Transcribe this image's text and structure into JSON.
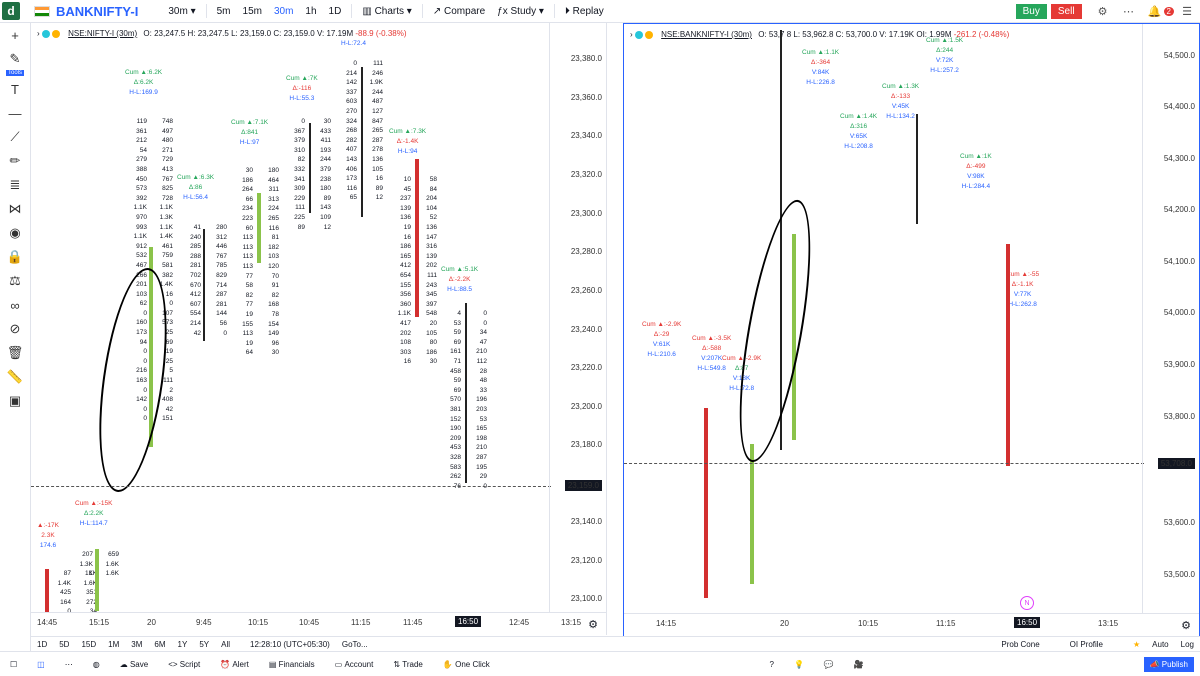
{
  "topbar": {
    "logo": "d",
    "symbol": "BANKNIFTY-I",
    "interval_dropdown": "30m",
    "intervals": [
      "5m",
      "15m",
      "30m",
      "1h",
      "1D"
    ],
    "charts": "Charts",
    "compare": "Compare",
    "study": "Study",
    "replay": "Replay",
    "buy": "Buy",
    "sell": "Sell",
    "notif_count": "2"
  },
  "left_toolbar": {
    "tools_label": "Tools"
  },
  "pane1": {
    "legend": {
      "name": "NSE:NIFTY-I (30m)",
      "o": "O: 23,247.5",
      "h": "H: 23,247.5",
      "l": "L: 23,159.0",
      "c": "C: 23,159.0",
      "v": "V: 17.19M",
      "oi": "OI: 17.19M",
      "chg": "-88.9 (-0.38%)"
    },
    "price_axis": [
      "23,380.0",
      "23,360.0",
      "23,340.0",
      "23,320.0",
      "23,300.0",
      "23,280.0",
      "23,260.0",
      "23,240.0",
      "23,220.0",
      "23,200.0",
      "23,180.0",
      "23,159.0",
      "23,140.0",
      "23,120.0",
      "23,100.0"
    ],
    "current_price": "23,159.0",
    "time_axis": [
      "14:45",
      "15:15",
      "20",
      "9:45",
      "10:15",
      "10:45",
      "11:15",
      "11:45",
      "16:50",
      "12:45",
      "13:15"
    ],
    "stats": [
      {
        "cum": "Cum ▲:6.2K",
        "delta": "Δ:6.2K",
        "hl": "H-L:169.9"
      },
      {
        "cum": "Cum ▲:7.1K",
        "delta": "Δ:841",
        "hl": "H-L:97"
      },
      {
        "cum": "Cum ▲:6.3K",
        "delta": "Δ:86",
        "hl": "H-L:56.4"
      },
      {
        "cum": "Cum ▲:7K",
        "delta": "Δ:-116",
        "hl": "H-L:55.3"
      },
      {
        "cum": "Cum ▲:7.3K",
        "delta": "Δ:-1.4K",
        "hl": "H-L:94"
      },
      {
        "cum": "Cum ▲:5.1K",
        "delta": "Δ:-2.2K",
        "hl": "H-L:88.5"
      },
      {
        "cum": "Cum ▲:-15K",
        "delta": "Δ:2.2K",
        "hl": "H-L:114.7"
      },
      {
        "cum": "▲:-17K",
        "delta": "2.3K",
        "hl": "174.6"
      }
    ],
    "top_hl": "H-L:72.4"
  },
  "pane2": {
    "legend": {
      "name": "NSE:BANKNIFTY-I (30m)",
      "o": "O: 53,7",
      "h": "8",
      "l": "L: 53,962.8",
      "c": "C: 53,700.0",
      "v2": "53,708.0",
      "v": "V: 17.19K",
      "oi": "OI: 1.99M",
      "chg": "-261.2 (-0.48%)"
    },
    "price_axis": [
      "54,500.0",
      "54,400.0",
      "54,300.0",
      "54,200.0",
      "54,100.0",
      "54,000.0",
      "53,900.0",
      "53,800.0",
      "53,708.0",
      "53,600.0",
      "53,500.0"
    ],
    "current_price": "53,708.0",
    "time_axis": [
      "14:15",
      "20",
      "10:15",
      "11:15",
      "16:50",
      "13:15"
    ],
    "stats": [
      {
        "cum": "Cum ▲:1.1K",
        "delta": "Δ:-364",
        "hl": "V:84K",
        "hl2": "H-L:226.8"
      },
      {
        "cum": "Cum ▲:1.4K",
        "delta": "Δ:316",
        "hl": "V:65K",
        "hl2": "H-L:208.8"
      },
      {
        "cum": "Cum ▲:1.3K",
        "delta": "Δ:-133",
        "hl": "V:45K",
        "hl2": "H-L:134.2"
      },
      {
        "cum": "Cum ▲:1.5K",
        "delta": "Δ:244",
        "hl": "V:72K",
        "hl2": "H-L:257.2"
      },
      {
        "cum": "Cum ▲:1K",
        "delta": "Δ:-499",
        "hl": "V:98K",
        "hl2": "H-L:284.4"
      },
      {
        "cum": "Cum ▲:-55",
        "delta": "Δ:-1.1K",
        "hl": "V:77K",
        "hl2": "H-L:262.8"
      },
      {
        "cum": "Cum ▲:-2.9K",
        "delta": "Δ:-29",
        "hl": "V:61K",
        "hl2": "H-L:210.6"
      },
      {
        "cum": "Cum ▲:-3.5K",
        "delta": "Δ:-588",
        "hl": "V:207K",
        "hl2": "H-L:549.8"
      },
      {
        "cum": "Cum ▲:-2.9K",
        "delta": "Δ:87",
        "hl": "V:18K",
        "hl2": "H-L:72.8"
      }
    ],
    "n_badge": "N"
  },
  "bottom_range": [
    "1D",
    "5D",
    "15D",
    "1M",
    "3M",
    "6M",
    "1Y",
    "5Y",
    "All"
  ],
  "clock": "12:28:10 (UTC+05:30)",
  "goto": "GoTo...",
  "bottom_right": [
    "Prob Cone",
    "OI Profile",
    "Auto",
    "Log"
  ],
  "bottom_tools": [
    "Save",
    "Script",
    "Alert",
    "Financials",
    "Account",
    "Trade",
    "One Click"
  ],
  "publish": "Publish",
  "footprint": {
    "p1c1": [
      "119 748",
      "361 497",
      "212 480",
      "54 271",
      "279 729",
      "388 413",
      "450 767",
      "573 825",
      "392 728",
      "1.1K 1.1K",
      "970 1.3K",
      "993 1.1K",
      "1.1K 1.4K",
      "912 461",
      "532 759",
      "467 581",
      "266 382",
      "201 1.4K",
      "103 16",
      "62 0",
      "0 107",
      "160 573",
      "173 25",
      "94 69",
      "0 19",
      "0 25",
      "216 5",
      "163 111",
      "0 2",
      "142 408",
      "0 42",
      "0 151"
    ],
    "p1c2": [
      "41 280",
      "240 312",
      "285 446",
      "288 767",
      "281 785",
      "702 829",
      "670 714",
      "412 287",
      "607 281",
      "554 144",
      "214 56",
      "42 0"
    ],
    "p1c3": [
      "30 180",
      "186 464",
      "264 311",
      "66 313",
      "234 224",
      "223 265",
      "60 116",
      "113 81",
      "113 182",
      "113 103",
      "113 120",
      "77 70",
      "58 91",
      "82 82",
      "77 168",
      "19 78",
      "155 154",
      "113 149",
      "19 96",
      "64 30"
    ],
    "p1c4": [
      "0 30",
      "367 433",
      "379 411",
      "310 193",
      "82 244",
      "332 379",
      "341 238",
      "309 180",
      "229 89",
      "111 143",
      "225 109",
      "89 12"
    ],
    "p1c5": [
      "0 111",
      "214 246",
      "142 1.9K",
      "337 244",
      "603 487",
      "270 127",
      "324 847",
      "268 265",
      "282 287",
      "407 278",
      "143 136",
      "406 105",
      "173 16",
      "116 89",
      "65 12"
    ],
    "p1c6": [
      "10 58",
      "45 84",
      "237 204",
      "139 104",
      "136 52",
      "19 136",
      "16 147",
      "186 316",
      "165 139",
      "412 202",
      "654 111",
      "155 243",
      "356 345",
      "360 397",
      "1.1K 548",
      "417 20",
      "202 105",
      "108 80",
      "303 186",
      "16 30"
    ],
    "p1c7": [
      "4 0",
      "53 0",
      "59 34",
      "69 47",
      "161 210",
      "71 112",
      "458 28",
      "59 48",
      "69 33",
      "570 196",
      "381 203",
      "152 53",
      "190 165",
      "209 198",
      "453 210",
      "328 287",
      "583 195",
      "262 29",
      "76 0"
    ],
    "p1bot1": [
      "87 1K",
      "1.4K 1.6K",
      "425 351",
      "164 272",
      "0 34"
    ],
    "p1bot2": [
      "207 659",
      "1.3K 1.6K",
      "1K 1.6K"
    ]
  }
}
